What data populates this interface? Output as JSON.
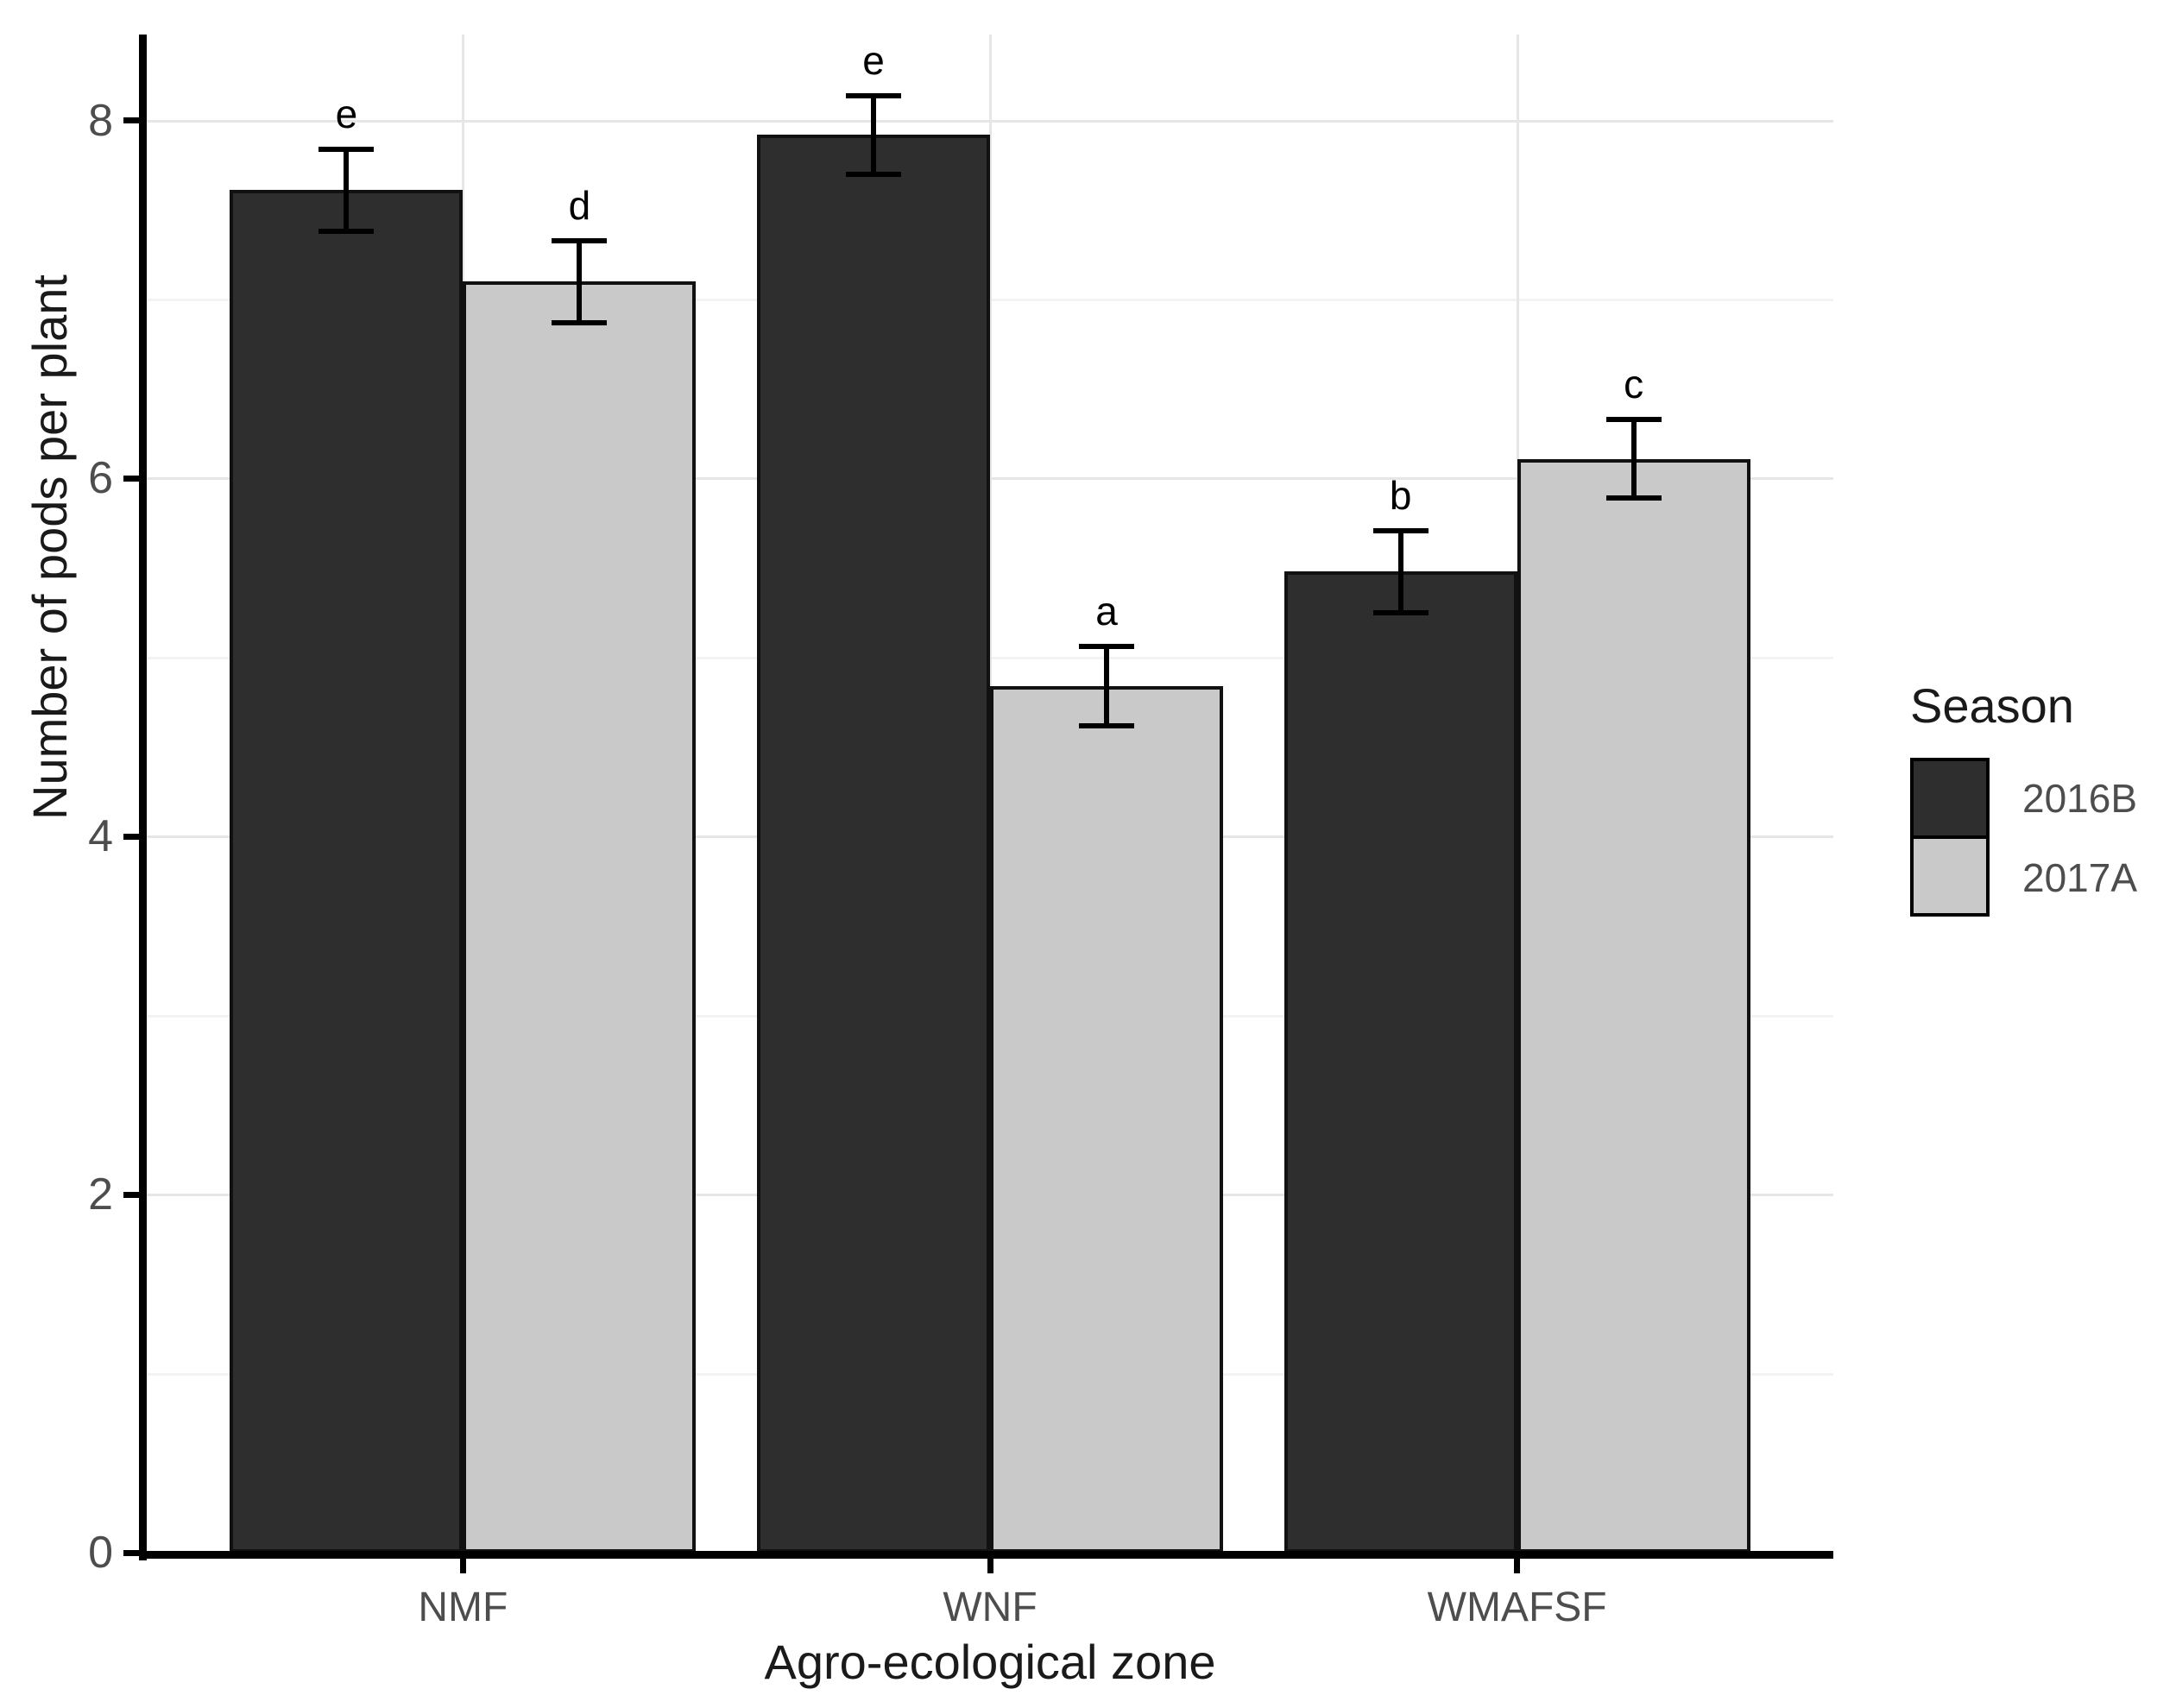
{
  "chart_data": {
    "type": "bar",
    "title": "",
    "xlabel": "Agro-ecological zone",
    "ylabel": "Number of pods per plant",
    "categories": [
      "NMF",
      "WNF",
      "WMAFSF"
    ],
    "series": [
      {
        "name": "2016B",
        "color": "#2e2e2e",
        "values": [
          7.61,
          7.92,
          5.48
        ],
        "errors": [
          0.23,
          0.22,
          0.23
        ],
        "sig_letters": [
          "e",
          "e",
          "b"
        ]
      },
      {
        "name": "2017A",
        "color": "#c9c9c9",
        "values": [
          7.1,
          4.84,
          6.11
        ],
        "errors": [
          0.23,
          0.22,
          0.22
        ],
        "sig_letters": [
          "d",
          "a",
          "c"
        ]
      }
    ],
    "yticks": [
      0,
      2,
      4,
      6,
      8
    ],
    "minor_gridlines": [
      1,
      3,
      5,
      7
    ],
    "ylim": [
      0,
      8.48
    ],
    "grid": "horizontal major+minor, vertical at category centers",
    "legend": {
      "title": "Season",
      "position": "right",
      "entries": [
        "2016B",
        "2017A"
      ]
    },
    "bar_border_color": "#111111",
    "error_bar_color": "#000000",
    "background_color": "#ffffff"
  }
}
